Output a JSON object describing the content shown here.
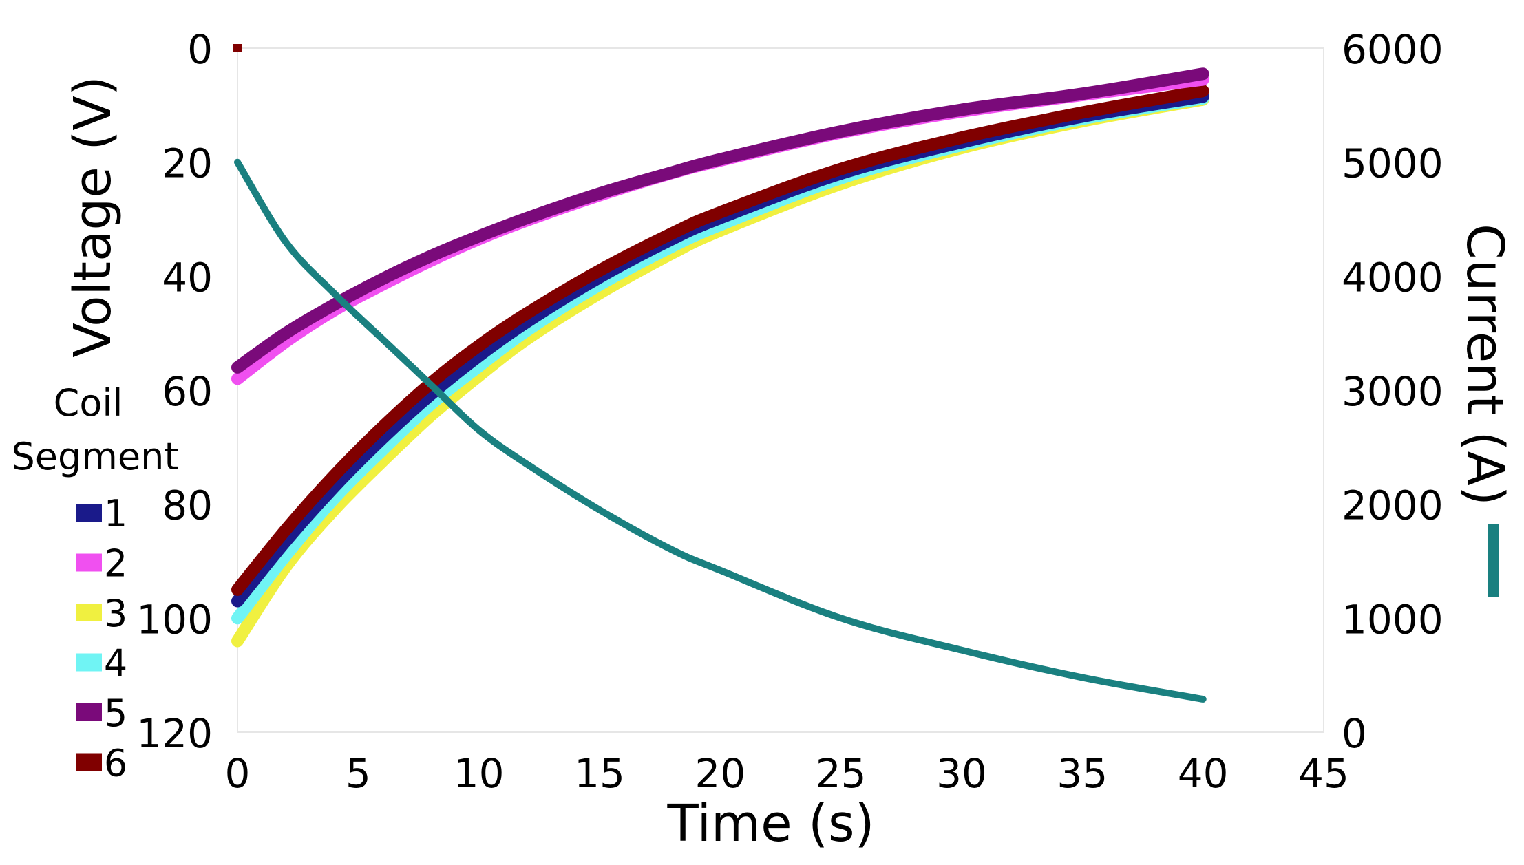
{
  "chart_data": {
    "type": "line",
    "title": "",
    "xlabel": "Time (s)",
    "ylabel_left": "Voltage (V)",
    "ylabel_right": "Current (A)",
    "xlim": [
      0,
      45
    ],
    "ylim_left": [
      0,
      120
    ],
    "ylim_left_inverted": true,
    "ylim_right": [
      0,
      6000
    ],
    "x_ticks": [
      "0",
      "5",
      "10",
      "15",
      "20",
      "25",
      "30",
      "35",
      "40",
      "45"
    ],
    "y_left_ticks": [
      "0",
      "20",
      "40",
      "60",
      "80",
      "100",
      "120"
    ],
    "y_right_ticks": [
      "0",
      "1000",
      "2000",
      "3000",
      "4000",
      "5000",
      "6000"
    ],
    "grid": false,
    "legend": {
      "title_line1": "Coil",
      "title_line2": "Segment",
      "placement": "left"
    },
    "series": [
      {
        "name": "1",
        "axis": "left",
        "color": "#1a1a8a",
        "x": [
          0,
          2,
          4,
          6,
          8,
          10,
          12,
          15,
          18,
          20,
          25,
          30,
          35,
          40
        ],
        "values": [
          97,
          86.5,
          77,
          68.5,
          60.8,
          54,
          48,
          40.2,
          33.5,
          29.8,
          22,
          16.5,
          12,
          8.5
        ]
      },
      {
        "name": "2",
        "axis": "left",
        "color": "#f050f0",
        "x": [
          0,
          2,
          4,
          6,
          8,
          10,
          12,
          15,
          18,
          20,
          25,
          30,
          35,
          40
        ],
        "values": [
          58,
          51.5,
          46,
          41.5,
          37.3,
          33.5,
          30.2,
          25.8,
          21.9,
          19.7,
          14.8,
          11.1,
          8.2,
          5.5
        ]
      },
      {
        "name": "3",
        "axis": "left",
        "color": "#f0f040",
        "x": [
          0,
          2,
          4,
          6,
          8,
          10,
          12,
          15,
          18,
          20,
          25,
          30,
          35,
          40
        ],
        "values": [
          104,
          91,
          81,
          72.5,
          64.5,
          57.5,
          51,
          43,
          36,
          32,
          23.8,
          17.5,
          12.8,
          9
        ]
      },
      {
        "name": "4",
        "axis": "left",
        "color": "#70f4f4",
        "x": [
          0,
          2,
          4,
          6,
          8,
          10,
          12,
          15,
          18,
          20,
          25,
          30,
          35,
          40
        ],
        "values": [
          100,
          89,
          79,
          70.5,
          62.5,
          55.8,
          49.5,
          41.5,
          34.8,
          31,
          22.8,
          17,
          12.4,
          8.8
        ]
      },
      {
        "name": "5",
        "axis": "left",
        "color": "#7a0a7a",
        "x": [
          0,
          2,
          4,
          6,
          8,
          10,
          12,
          15,
          18,
          20,
          25,
          30,
          35,
          40
        ],
        "values": [
          56,
          50,
          45,
          40.5,
          36.5,
          33,
          29.8,
          25.5,
          21.8,
          19.5,
          14.6,
          10.8,
          8,
          4.5
        ]
      },
      {
        "name": "6",
        "axis": "left",
        "color": "#800000",
        "x": [
          0,
          2,
          4,
          6,
          8,
          10,
          12,
          15,
          18,
          20,
          25,
          30,
          35,
          40
        ],
        "values": [
          95,
          84.5,
          75,
          66.5,
          58.8,
          52.2,
          46.5,
          39,
          32.5,
          28.8,
          21.2,
          15.7,
          11.3,
          7.5
        ]
      },
      {
        "name": "Current",
        "axis": "right",
        "color": "#1a8080",
        "x": [
          0,
          2,
          4,
          6,
          8,
          10,
          12,
          15,
          18,
          20,
          25,
          30,
          35,
          40
        ],
        "values": [
          5000,
          4300,
          3850,
          3450,
          3050,
          2650,
          2350,
          1950,
          1600,
          1420,
          1000,
          720,
          480,
          290
        ]
      }
    ]
  }
}
